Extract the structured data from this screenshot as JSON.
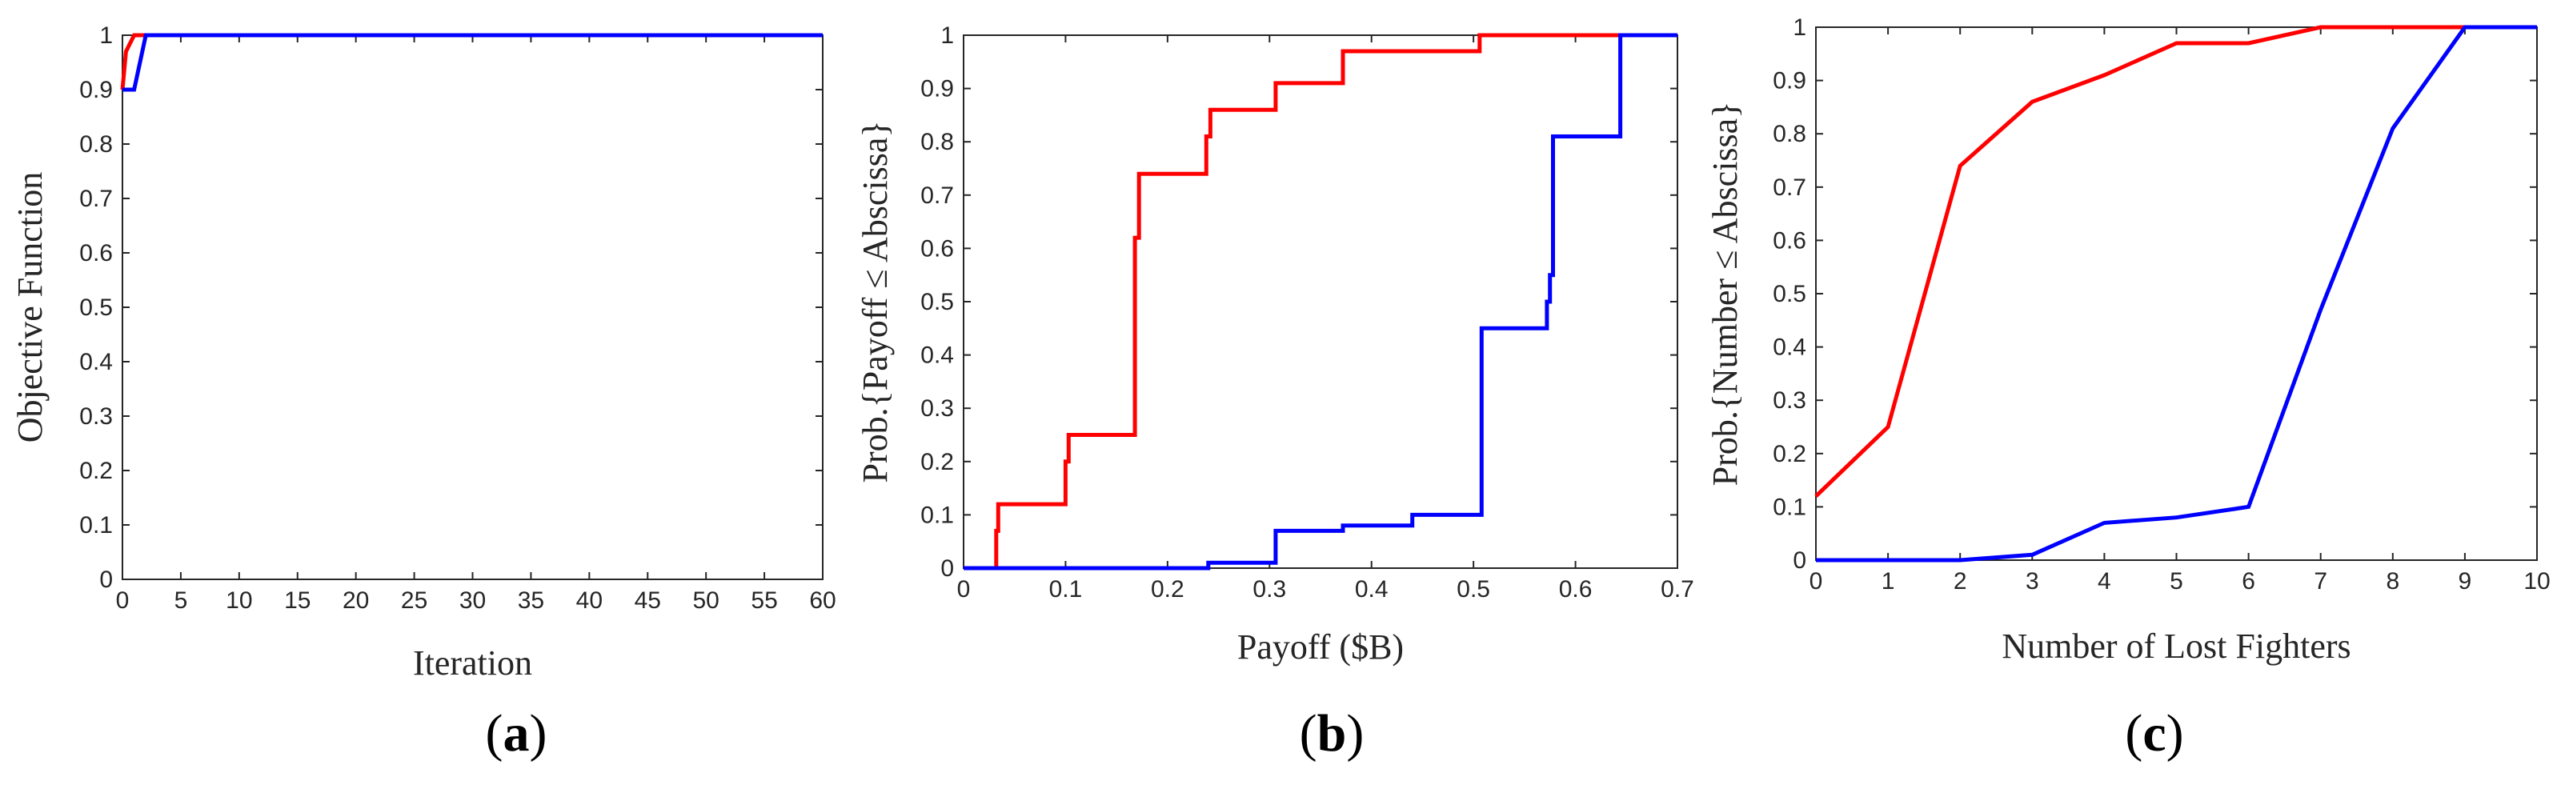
{
  "colors": {
    "red": "#ff0000",
    "blue": "#0000ff",
    "axis": "#262626"
  },
  "chart_data": [
    {
      "type": "line",
      "panel_label": "a",
      "xlabel": "Iteration",
      "ylabel": "Objective Function",
      "xlim": [
        0,
        60
      ],
      "ylim": [
        0,
        1
      ],
      "xticks": [
        0,
        5,
        10,
        15,
        20,
        25,
        30,
        35,
        40,
        45,
        50,
        55,
        60
      ],
      "yticks": [
        0,
        0.1,
        0.2,
        0.3,
        0.4,
        0.5,
        0.6,
        0.7,
        0.8,
        0.9,
        1
      ],
      "xtick_labels": [
        "0",
        "5",
        "10",
        "15",
        "20",
        "25",
        "30",
        "35",
        "40",
        "45",
        "50",
        "55",
        "60"
      ],
      "ytick_labels": [
        "0",
        "0.1",
        "0.2",
        "0.3",
        "0.4",
        "0.5",
        "0.6",
        "0.7",
        "0.8",
        "0.9",
        "1"
      ],
      "series": [
        {
          "color": "red",
          "x": [
            0,
            0.3,
            1,
            60
          ],
          "y": [
            0.9,
            0.97,
            1,
            1
          ]
        },
        {
          "color": "blue",
          "x": [
            0,
            1,
            2,
            60
          ],
          "y": [
            0.9,
            0.9,
            1,
            1
          ]
        }
      ]
    },
    {
      "type": "line",
      "panel_label": "b",
      "xlabel": "Payoff ($B)",
      "ylabel": "Prob.{Payoff ≤ Abscissa}",
      "xlim": [
        0,
        0.7
      ],
      "ylim": [
        0,
        1
      ],
      "xticks": [
        0,
        0.1,
        0.2,
        0.3,
        0.4,
        0.5,
        0.6,
        0.7
      ],
      "yticks": [
        0,
        0.1,
        0.2,
        0.3,
        0.4,
        0.5,
        0.6,
        0.7,
        0.8,
        0.9,
        1
      ],
      "xtick_labels": [
        "0",
        "0.1",
        "0.2",
        "0.3",
        "0.4",
        "0.5",
        "0.6",
        "0.7"
      ],
      "ytick_labels": [
        "0",
        "0.1",
        "0.2",
        "0.3",
        "0.4",
        "0.5",
        "0.6",
        "0.7",
        "0.8",
        "0.9",
        "1"
      ],
      "series": [
        {
          "color": "red",
          "x": [
            0,
            0.032,
            0.032,
            0.034,
            0.034,
            0.1,
            0.1,
            0.103,
            0.103,
            0.168,
            0.168,
            0.172,
            0.172,
            0.238,
            0.238,
            0.242,
            0.242,
            0.306,
            0.306,
            0.372,
            0.372,
            0.506,
            0.506,
            0.646
          ],
          "y": [
            0,
            0,
            0.07,
            0.07,
            0.12,
            0.12,
            0.2,
            0.2,
            0.25,
            0.25,
            0.62,
            0.62,
            0.74,
            0.74,
            0.81,
            0.81,
            0.86,
            0.86,
            0.91,
            0.91,
            0.97,
            0.97,
            1,
            1
          ]
        },
        {
          "color": "blue",
          "x": [
            0,
            0.24,
            0.24,
            0.306,
            0.306,
            0.372,
            0.372,
            0.44,
            0.44,
            0.508,
            0.508,
            0.572,
            0.572,
            0.575,
            0.575,
            0.578,
            0.578,
            0.644,
            0.644,
            0.7
          ],
          "y": [
            0,
            0,
            0.01,
            0.01,
            0.07,
            0.07,
            0.08,
            0.08,
            0.1,
            0.1,
            0.45,
            0.45,
            0.5,
            0.5,
            0.55,
            0.55,
            0.81,
            0.81,
            1,
            1
          ]
        }
      ]
    },
    {
      "type": "line",
      "panel_label": "c",
      "xlabel": "Number of Lost Fighters",
      "ylabel": "Prob.{Number ≤ Abscissa}",
      "xlim": [
        0,
        10
      ],
      "ylim": [
        0,
        1
      ],
      "xticks": [
        0,
        1,
        2,
        3,
        4,
        5,
        6,
        7,
        8,
        9,
        10
      ],
      "yticks": [
        0,
        0.1,
        0.2,
        0.3,
        0.4,
        0.5,
        0.6,
        0.7,
        0.8,
        0.9,
        1
      ],
      "xtick_labels": [
        "0",
        "1",
        "2",
        "3",
        "4",
        "5",
        "6",
        "7",
        "8",
        "9",
        "10"
      ],
      "ytick_labels": [
        "0",
        "0.1",
        "0.2",
        "0.3",
        "0.4",
        "0.5",
        "0.6",
        "0.7",
        "0.8",
        "0.9",
        "1"
      ],
      "series": [
        {
          "color": "red",
          "x": [
            0,
            1,
            2,
            3,
            4,
            5,
            6,
            7,
            8,
            9,
            10
          ],
          "y": [
            0.12,
            0.25,
            0.74,
            0.86,
            0.91,
            0.97,
            0.97,
            1,
            1,
            1,
            1
          ]
        },
        {
          "color": "blue",
          "x": [
            0,
            1,
            2,
            3,
            4,
            5,
            6,
            7,
            8,
            9,
            10
          ],
          "y": [
            0,
            0,
            0,
            0.01,
            0.07,
            0.08,
            0.1,
            0.47,
            0.81,
            1,
            1
          ]
        }
      ]
    }
  ]
}
